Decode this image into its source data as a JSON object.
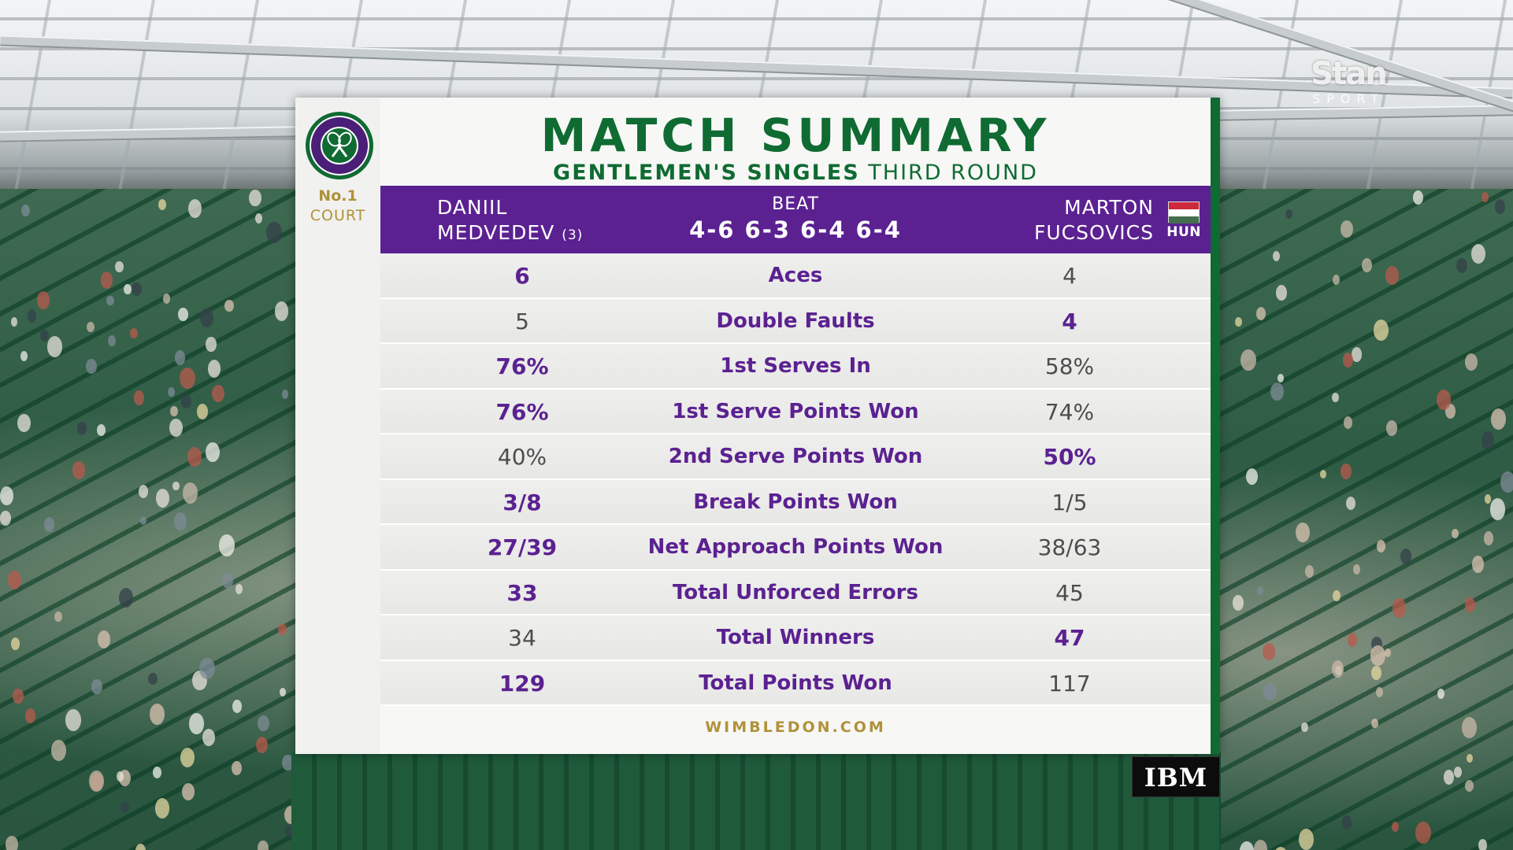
{
  "broadcaster": {
    "name": "Stan",
    "sub": "SPORT"
  },
  "panel": {
    "title": "MATCH SUMMARY",
    "subtitle_bold": "GENTLEMEN'S SINGLES",
    "subtitle_light": "THIRD ROUND",
    "court_line1": "No.1",
    "court_line2": "COURT",
    "logo_icon": "wimbledon-crossed-rackets",
    "footer": "WIMBLEDON.COM"
  },
  "header": {
    "player1_first": "DANIIL",
    "player1_last": "MEDVEDEV",
    "player1_seed": "(3)",
    "result_label": "BEAT",
    "score": "4-6 6-3 6-4 6-4",
    "player2_first": "MARTON",
    "player2_last": "FUCSOVICS",
    "player2_nation": "HUN",
    "flag_colors": [
      "#cd2a3e",
      "#ffffff",
      "#436f4d"
    ]
  },
  "stats": [
    {
      "label": "Aces",
      "p1": "6",
      "p2": "4",
      "winner": "p1"
    },
    {
      "label": "Double Faults",
      "p1": "5",
      "p2": "4",
      "winner": "p2"
    },
    {
      "label": "1st Serves In",
      "p1": "76%",
      "p2": "58%",
      "winner": "p1"
    },
    {
      "label": "1st Serve Points Won",
      "p1": "76%",
      "p2": "74%",
      "winner": "p1"
    },
    {
      "label": "2nd Serve Points Won",
      "p1": "40%",
      "p2": "50%",
      "winner": "p2"
    },
    {
      "label": "Break Points Won",
      "p1": "3/8",
      "p2": "1/5",
      "winner": "p1"
    },
    {
      "label": "Net Approach Points Won",
      "p1": "27/39",
      "p2": "38/63",
      "winner": "p1"
    },
    {
      "label": "Total Unforced Errors",
      "p1": "33",
      "p2": "45",
      "winner": "p1"
    },
    {
      "label": "Total Winners",
      "p1": "34",
      "p2": "47",
      "winner": "p2"
    },
    {
      "label": "Total Points Won",
      "p1": "129",
      "p2": "117",
      "winner": "p1"
    }
  ],
  "sponsor": {
    "name": "IBM"
  },
  "colors": {
    "purple": "#5b2191",
    "green": "#0f6b32",
    "gold": "#b0923a"
  }
}
